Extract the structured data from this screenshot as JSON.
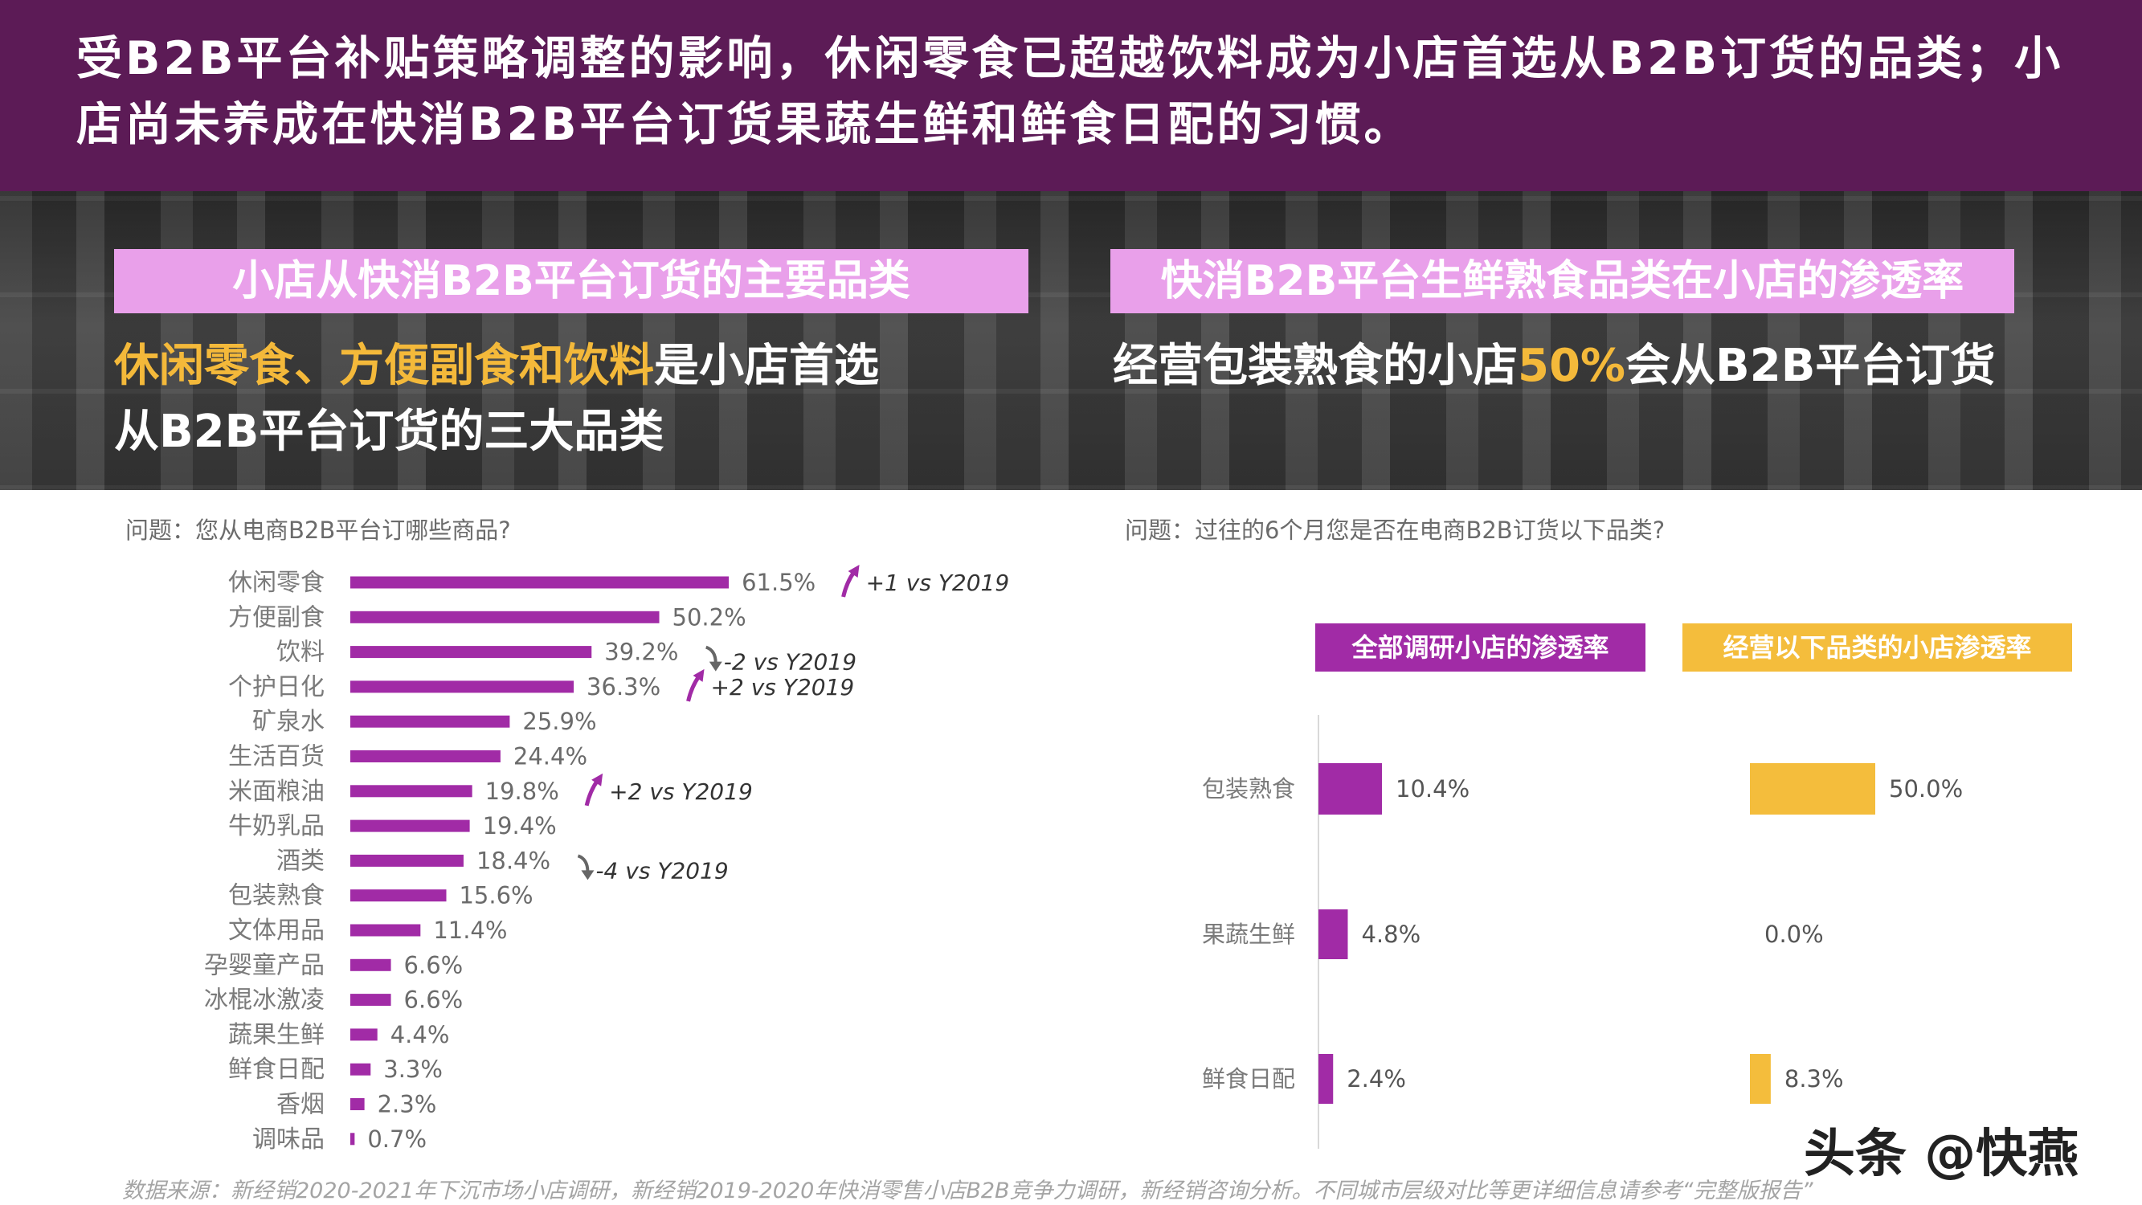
{
  "header": {
    "title": "受B2B平台补贴策略调整的影响，休闲零食已超越饮料成为小店首选从B2B订货的品类；小店尚未养成在快消B2B平台订货果蔬生鲜和鲜食日配的习惯。"
  },
  "left_panel": {
    "header": "小店从快消B2B平台订货的主要品类",
    "subhead_highlight": "休闲零食、方便副食和饮料",
    "subhead_rest": "是小店首选从B2B平台订货的三大品类",
    "question": "问题：您从电商B2B平台订哪些商品?"
  },
  "right_panel": {
    "header": "快消B2B平台生鲜熟食品类在小店的渗透率",
    "subhead_pre": "经营包装熟食的小店",
    "subhead_highlight": "50%",
    "subhead_post": "会从B2B平台订货",
    "question": "问题：过往的6个月您是否在电商B2B订货以下品类?"
  },
  "legend": {
    "all": "全部调研小店的渗透率",
    "operating": "经营以下品类的小店渗透率"
  },
  "colors": {
    "banner": "#5c1b56",
    "bar": "#a12ba6",
    "yellow": "#f4bd3c",
    "pink": "#e9a0ea",
    "arrow_up": "#a12ba6",
    "arrow_down": "#666666"
  },
  "chart_data": [
    {
      "type": "bar",
      "orientation": "horizontal",
      "categories": [
        "休闲零食",
        "方便副食",
        "饮料",
        "个护日化",
        "矿泉水",
        "生活百货",
        "米面粮油",
        "牛奶乳品",
        "酒类",
        "包装熟食",
        "文体用品",
        "孕婴童产品",
        "冰棍冰激凌",
        "蔬果生鲜",
        "鲜食日配",
        "香烟",
        "调味品"
      ],
      "values": [
        61.5,
        50.2,
        39.2,
        36.3,
        25.9,
        24.4,
        19.8,
        19.4,
        18.4,
        15.6,
        11.4,
        6.6,
        6.6,
        4.4,
        3.3,
        2.3,
        0.7
      ],
      "value_labels": [
        "61.5%",
        "50.2%",
        "39.2%",
        "36.3%",
        "25.9%",
        "24.4%",
        "19.8%",
        "19.4%",
        "18.4%",
        "15.6%",
        "11.4%",
        "6.6%",
        "6.6%",
        "4.4%",
        "3.3%",
        "2.3%",
        "0.7%"
      ],
      "annotations": [
        {
          "category": "休闲零食",
          "direction": "up",
          "text": "+1 vs Y2019"
        },
        {
          "category": "饮料",
          "direction": "down",
          "text": "-2 vs Y2019"
        },
        {
          "category": "个护日化",
          "direction": "up",
          "text": "+2 vs Y2019"
        },
        {
          "category": "米面粮油",
          "direction": "up",
          "text": "+2 vs Y2019"
        },
        {
          "category": "酒类",
          "direction": "down",
          "text": "-4 vs Y2019"
        }
      ],
      "xlim": [
        0,
        65
      ],
      "grid": false
    },
    {
      "type": "bar",
      "orientation": "horizontal",
      "categories": [
        "包装熟食",
        "果蔬生鲜",
        "鲜食日配"
      ],
      "series": [
        {
          "name": "全部调研小店的渗透率",
          "values": [
            10.4,
            4.8,
            2.4
          ],
          "labels": [
            "10.4%",
            "4.8%",
            "2.4%"
          ]
        },
        {
          "name": "经营以下品类的小店渗透率",
          "values": [
            50.0,
            0.0,
            8.3
          ],
          "labels": [
            "50.0%",
            "0.0%",
            "8.3%"
          ]
        }
      ],
      "xlim": [
        0,
        100
      ],
      "grid": false,
      "legend": "top"
    }
  ],
  "footnote": "数据来源：新经销2020-2021年下沉市场小店调研，新经销2019-2020年快消零售小店B2B竞争力调研，新经销咨询分析。不同城市层级对比等更详细信息请参考“完整版报告”",
  "watermark": "头条 @快燕"
}
